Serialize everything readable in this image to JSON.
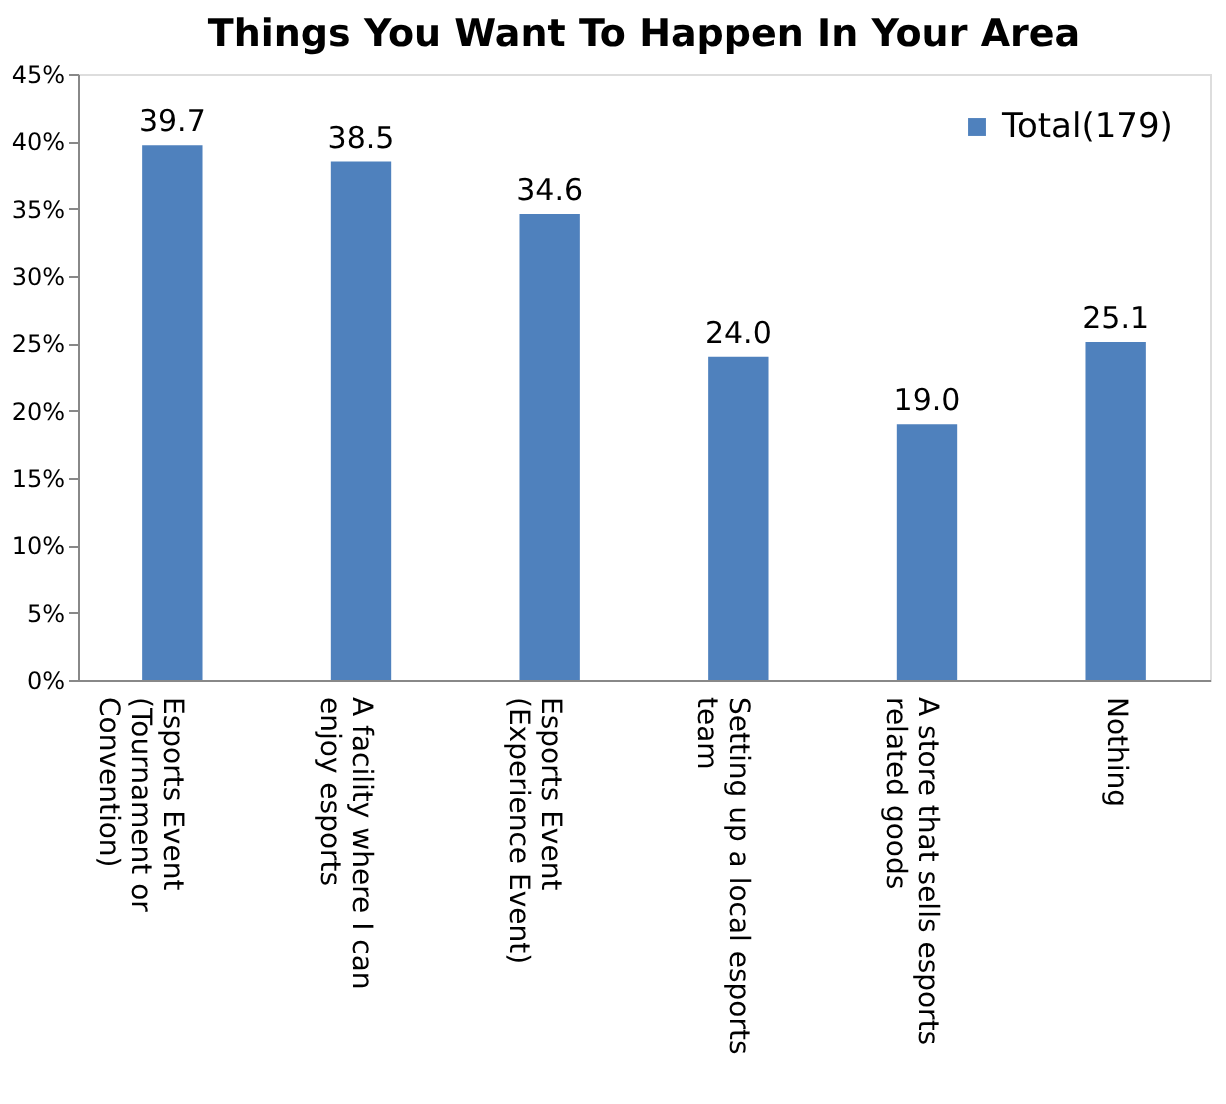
{
  "chart_data": {
    "type": "bar",
    "title": "Things You Want To Happen In Your Area",
    "categories": [
      "Esports Event\n(Tournament or\nConvention)",
      "A facility where I can\nenjoy esports",
      "Esports Event\n(Experience Event)",
      "Setting up a local esports\nteam",
      "A store that sells esports\nrelated goods",
      "Nothing"
    ],
    "series": [
      {
        "name": "Total(179)",
        "color": "#4f81bd",
        "values": [
          39.7,
          38.5,
          34.6,
          24.0,
          19.0,
          25.1
        ],
        "value_labels": [
          "39.7",
          "38.5",
          "34.6",
          "24.0",
          "19.0",
          "25.1"
        ]
      }
    ],
    "ylim": [
      0,
      45
    ],
    "yticks": [
      {
        "value": 0,
        "label": "0%"
      },
      {
        "value": 5,
        "label": "5%"
      },
      {
        "value": 10,
        "label": "10%"
      },
      {
        "value": 15,
        "label": "15%"
      },
      {
        "value": 20,
        "label": "20%"
      },
      {
        "value": 25,
        "label": "25%"
      },
      {
        "value": 30,
        "label": "30%"
      },
      {
        "value": 35,
        "label": "35%"
      },
      {
        "value": 40,
        "label": "40%"
      },
      {
        "value": 45,
        "label": "45%"
      }
    ],
    "grid": false,
    "legend": "top right"
  }
}
